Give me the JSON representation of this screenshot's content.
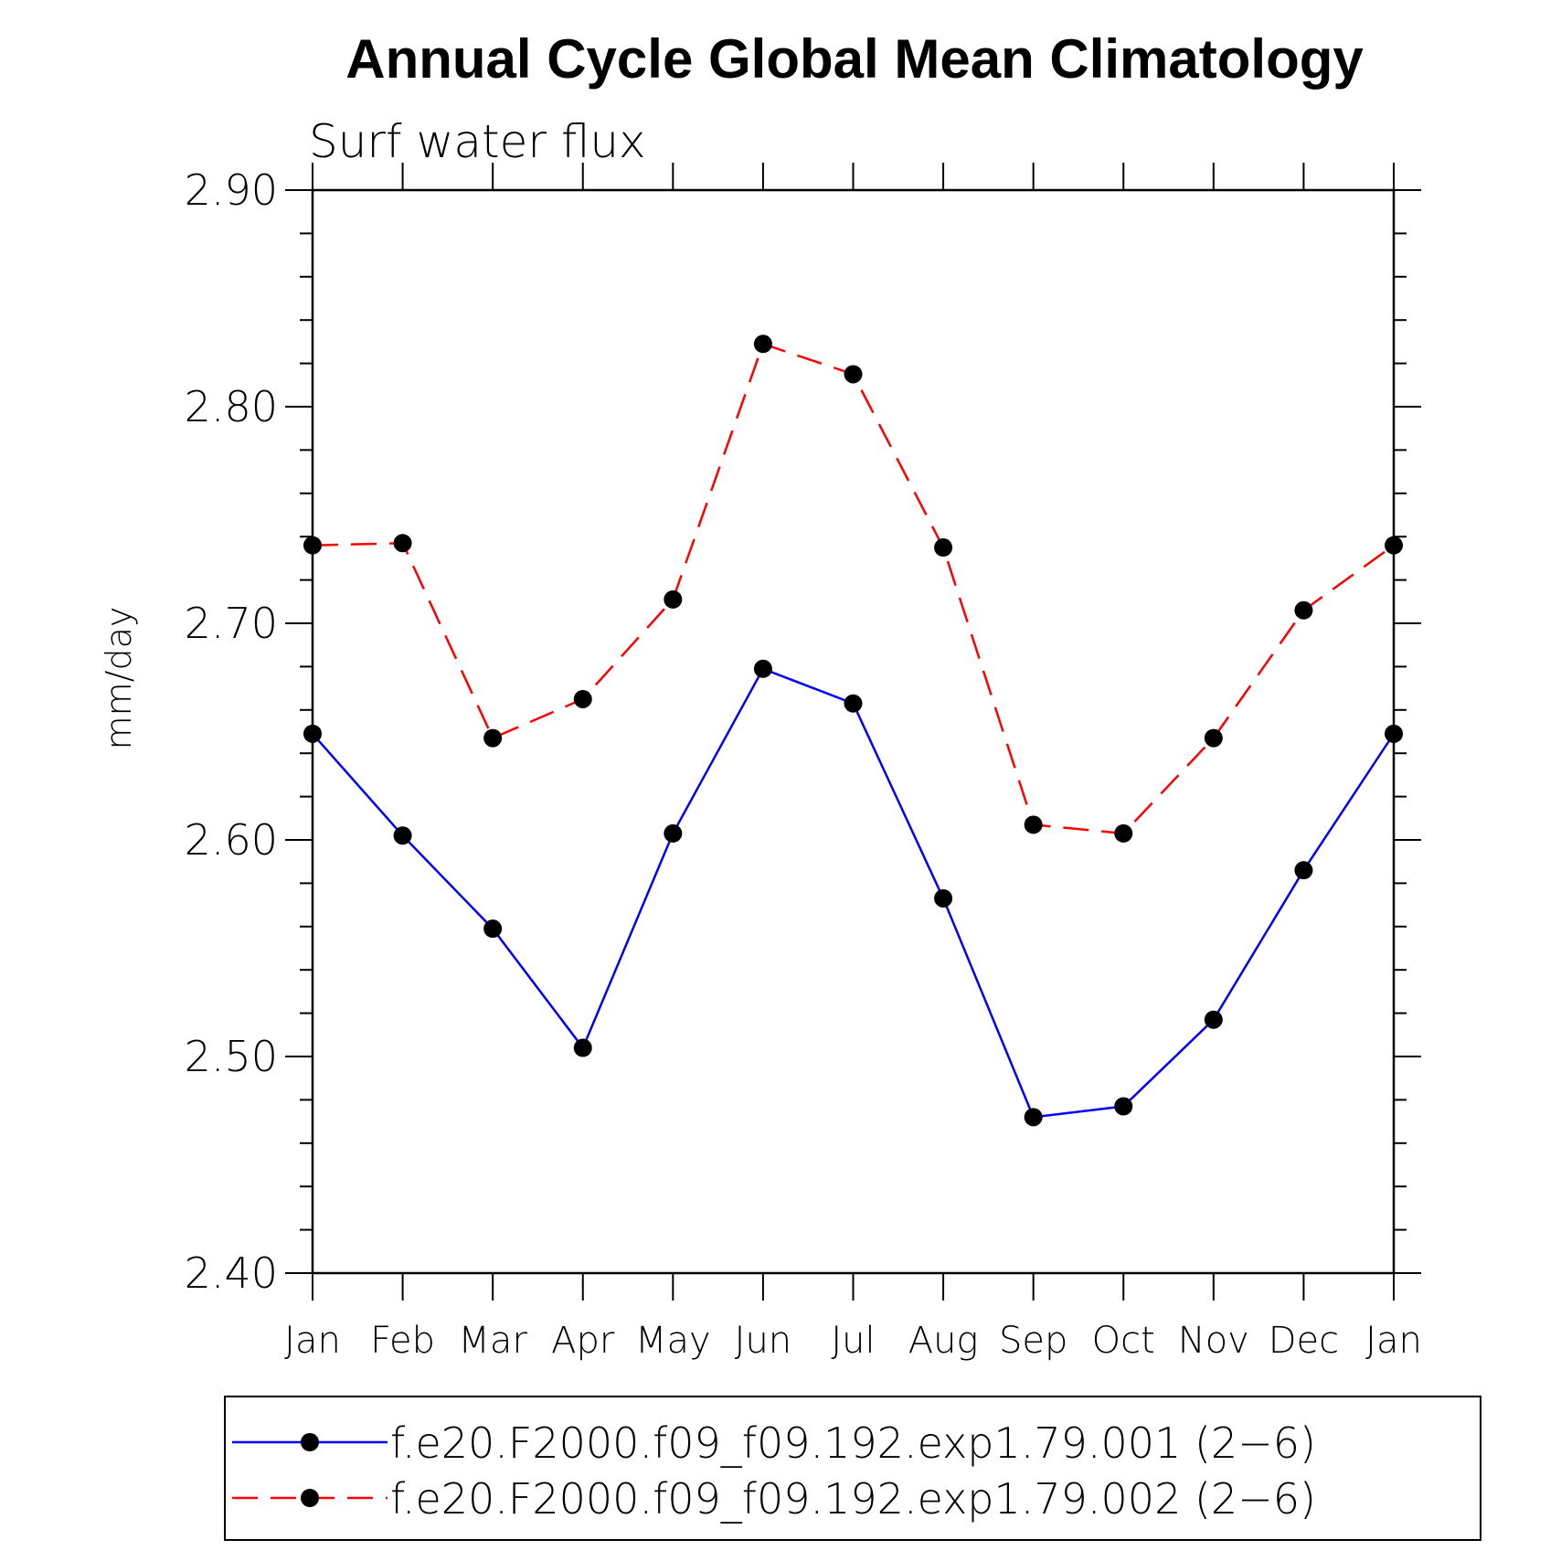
{
  "chart_data": {
    "type": "line",
    "title": "Annual Cycle Global Mean Climatology",
    "subtitle": "Surf water flux",
    "xlabel": "",
    "ylabel": "mm/day",
    "categories": [
      "Jan",
      "Feb",
      "Mar",
      "Apr",
      "May",
      "Jun",
      "Jul",
      "Aug",
      "Sep",
      "Oct",
      "Nov",
      "Dec",
      "Jan"
    ],
    "ylim": [
      2.4,
      2.9
    ],
    "yticks": [
      "2.40",
      "2.50",
      "2.60",
      "2.70",
      "2.80",
      "2.90"
    ],
    "y_minor_step": 0.02,
    "grid": false,
    "legend_position": "bottom",
    "series": [
      {
        "name": "f.e20.F2000.f09_f09.192.exp1.79.001 (2−6)",
        "color": "#0000ff",
        "line_style": "solid",
        "marker": "filled-circle",
        "values": [
          2.649,
          2.602,
          2.559,
          2.504,
          2.603,
          2.679,
          2.663,
          2.573,
          2.472,
          2.477,
          2.517,
          2.586,
          2.649
        ]
      },
      {
        "name": "f.e20.F2000.f09_f09.192.exp1.79.002 (2−6)",
        "color": "#ff0000",
        "line_style": "dashed",
        "marker": "filled-circle",
        "values": [
          2.736,
          2.737,
          2.647,
          2.665,
          2.711,
          2.829,
          2.815,
          2.735,
          2.607,
          2.603,
          2.647,
          2.706,
          2.736
        ]
      }
    ]
  }
}
